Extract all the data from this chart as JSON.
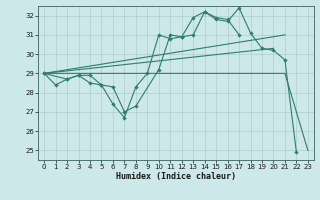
{
  "xlabel": "Humidex (Indice chaleur)",
  "xlim": [
    -0.5,
    23.5
  ],
  "ylim": [
    24.5,
    32.5
  ],
  "yticks": [
    25,
    26,
    27,
    28,
    29,
    30,
    31,
    32
  ],
  "xticks": [
    0,
    1,
    2,
    3,
    4,
    5,
    6,
    7,
    8,
    9,
    10,
    11,
    12,
    13,
    14,
    15,
    16,
    17,
    18,
    19,
    20,
    21,
    22,
    23
  ],
  "bg_color": "#cce8e8",
  "grid_color": "#b0cccc",
  "line_color": "#2e7d6e",
  "line1_zigzag": {
    "x": [
      0,
      1,
      2,
      3,
      4,
      5,
      6,
      7,
      8,
      9,
      10,
      11,
      12,
      13,
      14,
      15,
      16,
      17,
      18,
      19,
      20,
      21,
      22
    ],
    "y": [
      29.0,
      28.4,
      28.7,
      28.9,
      28.5,
      28.4,
      27.4,
      26.7,
      28.3,
      29.0,
      31.0,
      30.8,
      30.9,
      31.9,
      32.2,
      31.8,
      31.7,
      32.4,
      31.1,
      30.3,
      30.2,
      29.7,
      24.9
    ]
  },
  "line2_zigzag": {
    "x": [
      0,
      2,
      3,
      4,
      5,
      6,
      7,
      8,
      10,
      11,
      12,
      13,
      14,
      15,
      16,
      17
    ],
    "y": [
      29.0,
      28.7,
      28.9,
      28.9,
      28.4,
      28.3,
      27.0,
      27.3,
      29.2,
      31.0,
      30.9,
      31.0,
      32.2,
      31.9,
      31.8,
      31.0
    ]
  },
  "line3_straight": {
    "x": [
      0,
      20
    ],
    "y": [
      29.0,
      30.3
    ]
  },
  "line4_straight": {
    "x": [
      0,
      21
    ],
    "y": [
      29.0,
      31.0
    ]
  },
  "line5_drop": {
    "x": [
      0,
      4,
      9,
      14,
      18,
      21,
      22,
      23
    ],
    "y": [
      29.0,
      29.0,
      29.0,
      29.0,
      29.0,
      29.0,
      27.0,
      25.0
    ]
  }
}
